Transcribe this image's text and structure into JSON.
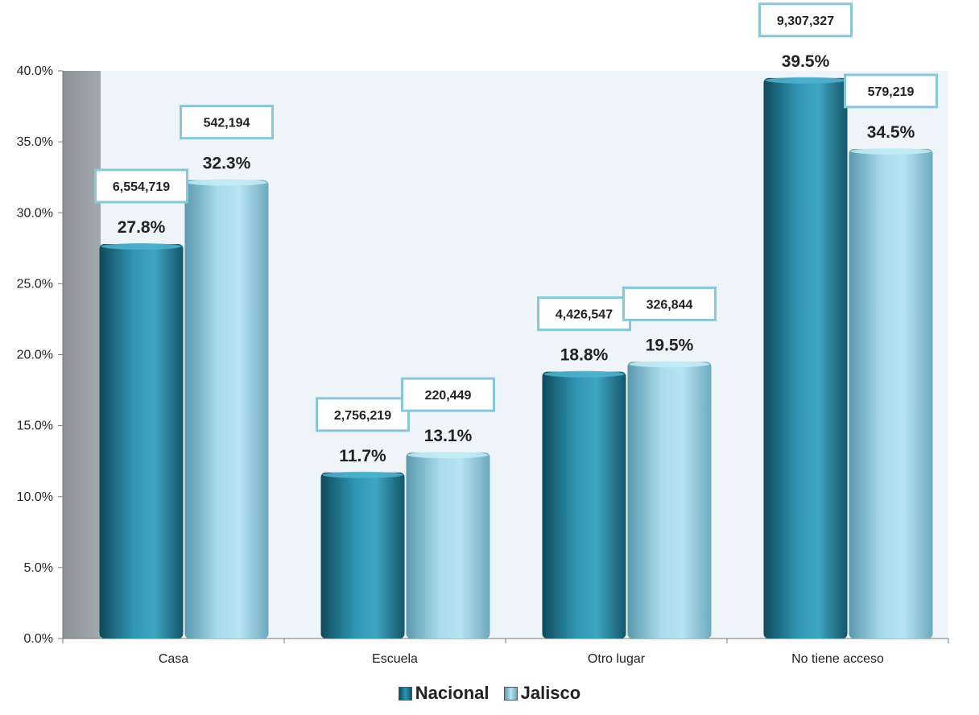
{
  "chart_data": {
    "type": "bar",
    "categories": [
      "Casa",
      "Escuela",
      "Otro lugar",
      "No tiene acceso"
    ],
    "series": [
      {
        "name": "Nacional",
        "values": [
          27.8,
          11.7,
          18.8,
          39.5
        ],
        "value_labels": [
          "27.8%",
          "11.7%",
          "18.8%",
          "39.5%"
        ],
        "counts": [
          "6,554,719",
          "2,756,219",
          "4,426,547",
          "9,307,327"
        ],
        "color": "#2a7f98"
      },
      {
        "name": "Jalisco",
        "values": [
          32.3,
          13.1,
          19.5,
          34.5
        ],
        "value_labels": [
          "32.3%",
          "13.1%",
          "19.5%",
          "34.5%"
        ],
        "counts": [
          "542,194",
          "220,449",
          "326,844",
          "579,219"
        ],
        "color": "#8ec9dc"
      }
    ],
    "ylim": [
      0,
      40
    ],
    "yticks": [
      0,
      5,
      10,
      15,
      20,
      25,
      30,
      35,
      40
    ],
    "ytick_labels": [
      "0.0%",
      "5.0%",
      "10.0%",
      "15.0%",
      "20.0%",
      "25.0%",
      "30.0%",
      "35.0%",
      "40.0%"
    ],
    "legend_position": "bottom",
    "grid": false,
    "box_border_color": "#86c7d9",
    "plot_background": "#eef4f8"
  }
}
